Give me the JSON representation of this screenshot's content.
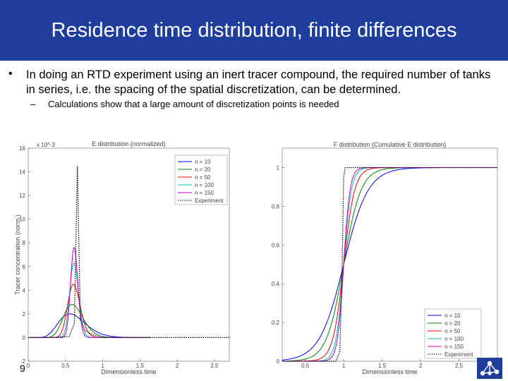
{
  "slide": {
    "title": "Residence time distribution, finite differences",
    "bullet": "In doing an RTD experiment using an inert tracer compound, the required number of tanks in series, i.e. the spacing of the spatial discretization, can be determined.",
    "sub_bullet": "Calculations show that a large amount of discretization points is needed",
    "page_number": "9",
    "bullet_icon": "bullet-dot-icon",
    "sub_bullet_icon": "dash-icon",
    "logo_icon": "network-logo-icon"
  },
  "colors": {
    "title_bg": "#1f3d9a",
    "title_text": "#ffffff",
    "n10": "#0000ff",
    "n20": "#008000",
    "n50": "#ff0000",
    "n100": "#00bfbf",
    "n150": "#bf00bf",
    "exp": "#000000"
  },
  "chart_data": [
    {
      "type": "line",
      "title": "E distribution (normalized)",
      "xlabel": "Dimensionless time",
      "ylabel": "Tracer concentration (norm.)",
      "y_exponent": "x 10^-3",
      "xlim": [
        0,
        2.7
      ],
      "ylim": [
        -2,
        16
      ],
      "x_ticks": [
        "0",
        "0.5",
        "1",
        "1.5",
        "2",
        "2.5"
      ],
      "y_ticks": [
        "-2",
        "0",
        "2",
        "4",
        "6",
        "8",
        "10",
        "12",
        "14",
        "16"
      ],
      "legend_position": "top-right",
      "legend": [
        "n = 10",
        "n = 20",
        "n = 50",
        "n = 100",
        "n = 150",
        "Experiment"
      ],
      "series": [
        {
          "name": "n = 10",
          "color_key": "n10",
          "n": 10
        },
        {
          "name": "n = 20",
          "color_key": "n20",
          "n": 20
        },
        {
          "name": "n = 50",
          "color_key": "n50",
          "n": 50
        },
        {
          "name": "n = 100",
          "color_key": "n100",
          "n": 100
        },
        {
          "name": "n = 150",
          "color_key": "n150",
          "n": 150
        },
        {
          "name": "Experiment",
          "color_key": "exp",
          "style": "dotted"
        }
      ],
      "peaks": {
        "n = 10": 2.0,
        "n = 20": 2.8,
        "n = 50": 4.5,
        "n = 100": 6.3,
        "n = 150": 7.6,
        "Experiment": 14.5
      }
    },
    {
      "type": "line",
      "title": "F distribution (Cumulative E distribution)",
      "xlabel": "Dimensionless time",
      "ylabel": "",
      "xlim": [
        0.2,
        3.0
      ],
      "ylim": [
        0,
        1.1
      ],
      "x_ticks": [
        "0.5",
        "1",
        "1.5",
        "2",
        "2.5"
      ],
      "y_ticks": [
        "0",
        "0.2",
        "0.4",
        "0.6",
        "0.8",
        "1"
      ],
      "legend_position": "bottom-right",
      "legend": [
        "n = 10",
        "n = 20",
        "n = 50",
        "n = 100",
        "n = 150",
        "Experiment"
      ],
      "series": [
        {
          "name": "n = 10",
          "color_key": "n10",
          "n": 10
        },
        {
          "name": "n = 20",
          "color_key": "n20",
          "n": 20
        },
        {
          "name": "n = 50",
          "color_key": "n50",
          "n": 50
        },
        {
          "name": "n = 100",
          "color_key": "n100",
          "n": 100
        },
        {
          "name": "n = 150",
          "color_key": "n150",
          "n": 150
        },
        {
          "name": "Experiment",
          "color_key": "exp",
          "style": "dotted"
        }
      ]
    }
  ]
}
